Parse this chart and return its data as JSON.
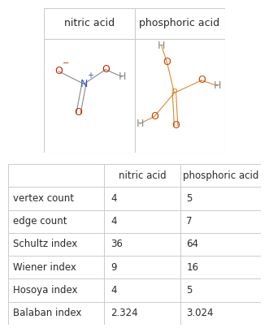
{
  "col_headers": [
    "",
    "nitric acid",
    "phosphoric acid"
  ],
  "rows": [
    [
      "vertex count",
      "4",
      "5"
    ],
    [
      "edge count",
      "4",
      "7"
    ],
    [
      "Schultz index",
      "36",
      "64"
    ],
    [
      "Wiener index",
      "9",
      "16"
    ],
    [
      "Hosoya index",
      "4",
      "5"
    ],
    [
      "Balaban index",
      "2.324",
      "3.024"
    ]
  ],
  "top_headers": [
    "nitric acid",
    "phosphoric acid"
  ],
  "text_color": "#2a2a2a",
  "background_color": "#ffffff",
  "border_color": "#cccccc",
  "nitric_colors": {
    "O": "#cc2200",
    "N": "#3355cc",
    "H": "#888888",
    "bond": "#888888"
  },
  "phosphoric_colors": {
    "O": "#cc4400",
    "P": "#dd8833",
    "H": "#888888",
    "bond": "#dd8833"
  }
}
